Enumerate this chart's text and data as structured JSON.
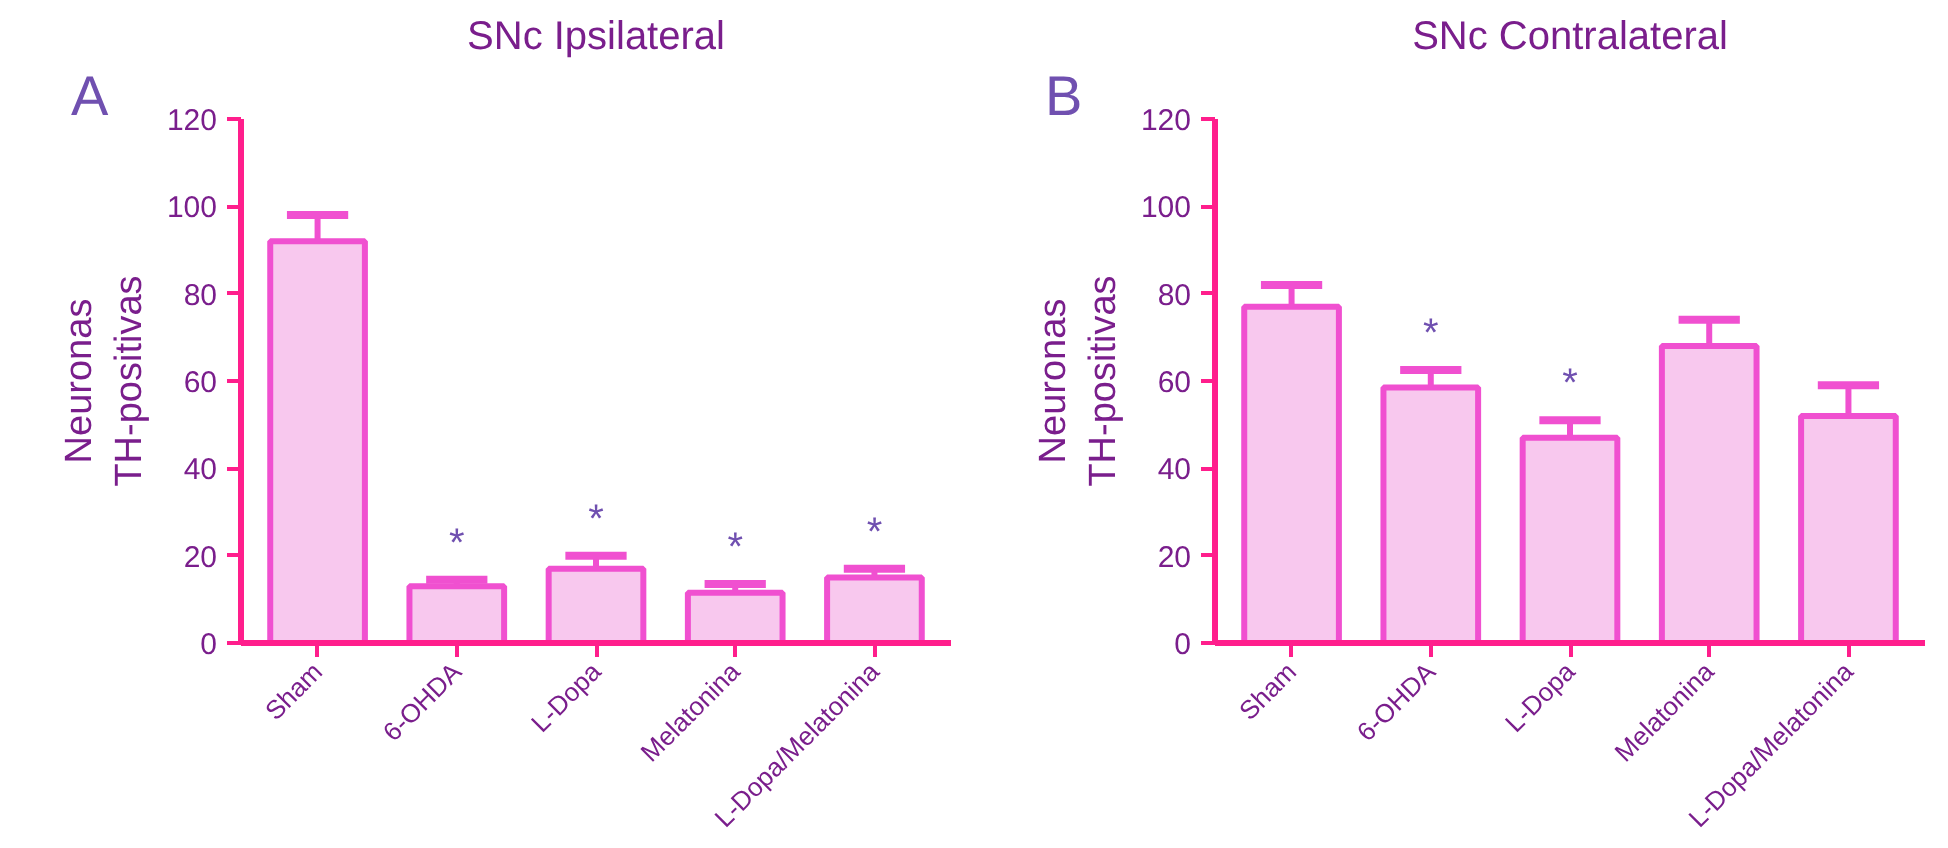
{
  "chart_data": [
    {
      "type": "bar",
      "title": "SNc Ipsilateral",
      "ylabel": "Neuronas\nTH-positivas",
      "categories": [
        "Sham",
        "6-OHDA",
        "L-Dopa",
        "Melatonina",
        "L-Dopa/Melatonina"
      ],
      "values": [
        92,
        13,
        17,
        11.5,
        15
      ],
      "errors": [
        6,
        1.5,
        3,
        2,
        2
      ],
      "color": "#f8c8ee",
      "ylim": [
        0,
        120
      ],
      "yticks": [
        0,
        20,
        40,
        60,
        80,
        100,
        120
      ],
      "grid": false,
      "value_labels": [
        null,
        "*",
        "*",
        "*",
        "*"
      ],
      "annotations": [
        "A"
      ]
    },
    {
      "type": "bar",
      "title": "SNc Contralateral",
      "ylabel": "Neuronas\nTH-positivas",
      "categories": [
        "Sham",
        "6-OHDA",
        "L-Dopa",
        "Melatonina",
        "L-Dopa/Melatonina"
      ],
      "values": [
        77,
        58.5,
        47,
        68,
        52
      ],
      "errors": [
        5,
        4,
        4,
        6,
        7
      ],
      "color": "#f8c8ee",
      "ylim": [
        0,
        120
      ],
      "yticks": [
        0,
        20,
        40,
        60,
        80,
        100,
        120
      ],
      "grid": false,
      "value_labels": [
        null,
        "*",
        "*",
        null,
        null
      ],
      "annotations": [
        "B"
      ]
    }
  ]
}
